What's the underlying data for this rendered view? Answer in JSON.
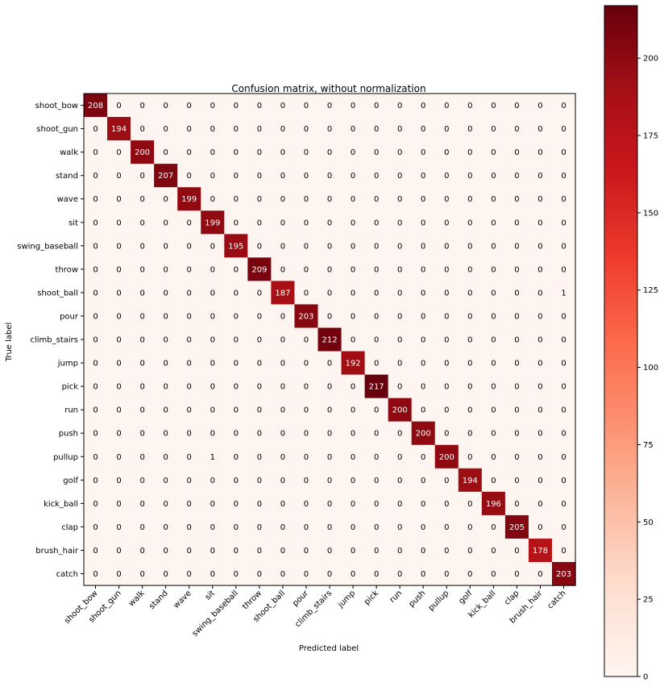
{
  "chart_data": {
    "type": "heatmap",
    "title": "Confusion matrix, without normalization",
    "xlabel": "Predicted label",
    "ylabel": "True label",
    "labels": [
      "shoot_bow",
      "shoot_gun",
      "walk",
      "stand",
      "wave",
      "sit",
      "swing_baseball",
      "throw",
      "shoot_ball",
      "pour",
      "climb_stairs",
      "jump",
      "pick",
      "run",
      "push",
      "pullup",
      "golf",
      "kick_ball",
      "clap",
      "brush_hair",
      "catch"
    ],
    "diagonal": [
      208,
      194,
      200,
      207,
      199,
      199,
      195,
      209,
      187,
      203,
      212,
      192,
      217,
      200,
      200,
      200,
      194,
      196,
      205,
      178,
      203
    ],
    "off_diagonal": [
      {
        "row": 8,
        "col": 20,
        "value": 1
      },
      {
        "row": 15,
        "col": 5,
        "value": 1
      }
    ],
    "colormap": "Reds",
    "vmin": 0,
    "vmax": 217,
    "colorbar_ticks": [
      0,
      25,
      50,
      75,
      100,
      125,
      150,
      175,
      200
    ]
  }
}
